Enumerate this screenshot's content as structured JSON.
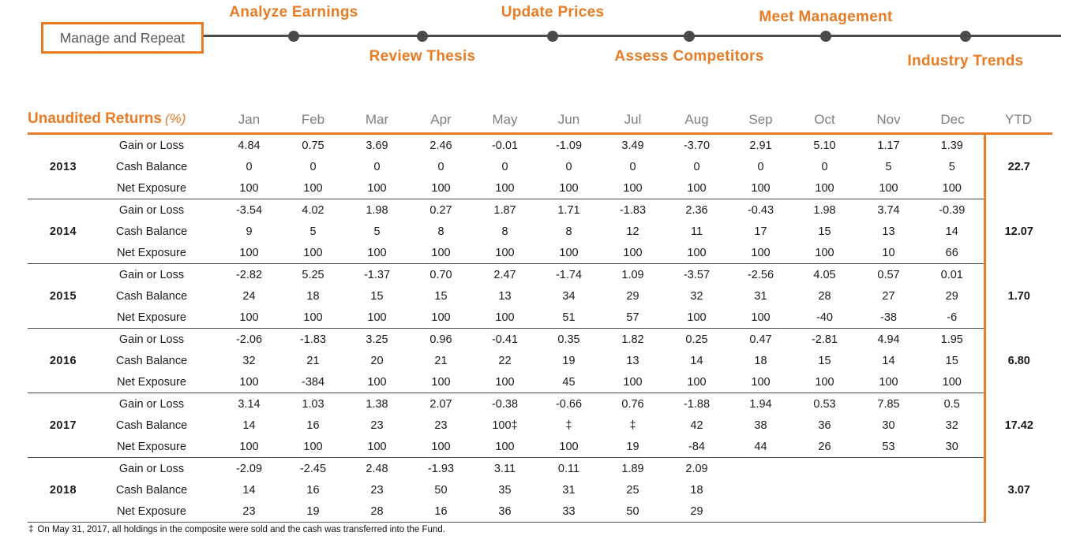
{
  "colors": {
    "accent": "#E87B23",
    "navy": "#1F3864",
    "gray": "#7F7F7F",
    "line": "#4A4A4A"
  },
  "timeline": {
    "box_label": "Manage and Repeat",
    "steps": [
      {
        "label": "Analyze Earnings",
        "position": "above"
      },
      {
        "label": "Review Thesis",
        "position": "below"
      },
      {
        "label": "Update Prices",
        "position": "above"
      },
      {
        "label": "Assess Competitors",
        "position": "below"
      },
      {
        "label": "Meet Management",
        "position": "above"
      },
      {
        "label": "Industry Trends",
        "position": "below"
      }
    ]
  },
  "table": {
    "title": "Unaudited Returns",
    "title_suffix": "(%)",
    "months": [
      "Jan",
      "Feb",
      "Mar",
      "Apr",
      "May",
      "Jun",
      "Jul",
      "Aug",
      "Sep",
      "Oct",
      "Nov",
      "Dec"
    ],
    "ytd_label": "YTD",
    "row_labels": [
      "Gain or Loss",
      "Cash Balance",
      "Net Exposure"
    ],
    "years": [
      {
        "year": "2013",
        "ytd": "22.7",
        "gain_or_loss": [
          "4.84",
          "0.75",
          "3.69",
          "2.46",
          "-0.01",
          "-1.09",
          "3.49",
          "-3.70",
          "2.91",
          "5.10",
          "1.17",
          "1.39"
        ],
        "cash_balance": [
          "0",
          "0",
          "0",
          "0",
          "0",
          "0",
          "0",
          "0",
          "0",
          "0",
          "5",
          "5"
        ],
        "net_exposure": [
          "100",
          "100",
          "100",
          "100",
          "100",
          "100",
          "100",
          "100",
          "100",
          "100",
          "100",
          "100"
        ]
      },
      {
        "year": "2014",
        "ytd": "12.07",
        "gain_or_loss": [
          "-3.54",
          "4.02",
          "1.98",
          "0.27",
          "1.87",
          "1.71",
          "-1.83",
          "2.36",
          "-0.43",
          "1.98",
          "3.74",
          "-0.39"
        ],
        "cash_balance": [
          "9",
          "5",
          "5",
          "8",
          "8",
          "8",
          "12",
          "11",
          "17",
          "15",
          "13",
          "14"
        ],
        "net_exposure": [
          "100",
          "100",
          "100",
          "100",
          "100",
          "100",
          "100",
          "100",
          "100",
          "100",
          "10",
          "66"
        ]
      },
      {
        "year": "2015",
        "ytd": "1.70",
        "gain_or_loss": [
          "-2.82",
          "5.25",
          "-1.37",
          "0.70",
          "2.47",
          "-1.74",
          "1.09",
          "-3.57",
          "-2.56",
          "4.05",
          "0.57",
          "0.01"
        ],
        "cash_balance": [
          "24",
          "18",
          "15",
          "15",
          "13",
          "34",
          "29",
          "32",
          "31",
          "28",
          "27",
          "29"
        ],
        "net_exposure": [
          "100",
          "100",
          "100",
          "100",
          "100",
          "51",
          "57",
          "100",
          "100",
          "-40",
          "-38",
          "-6"
        ]
      },
      {
        "year": "2016",
        "ytd": "6.80",
        "gain_or_loss": [
          "-2.06",
          "-1.83",
          "3.25",
          "0.96",
          "-0.41",
          "0.35",
          "1.82",
          "0.25",
          "0.47",
          "-2.81",
          "4.94",
          "1.95"
        ],
        "cash_balance": [
          "32",
          "21",
          "20",
          "21",
          "22",
          "19",
          "13",
          "14",
          "18",
          "15",
          "14",
          "15"
        ],
        "net_exposure": [
          "100",
          "-384",
          "100",
          "100",
          "100",
          "45",
          "100",
          "100",
          "100",
          "100",
          "100",
          "100"
        ]
      },
      {
        "year": "2017",
        "ytd": "17.42",
        "gain_or_loss": [
          "3.14",
          "1.03",
          "1.38",
          "2.07",
          "-0.38",
          "-0.66",
          "0.76",
          "-1.88",
          "1.94",
          "0.53",
          "7.85",
          "0.5"
        ],
        "cash_balance": [
          "14",
          "16",
          "23",
          "23",
          "100‡",
          "‡",
          "‡",
          "42",
          "38",
          "36",
          "30",
          "32"
        ],
        "net_exposure": [
          "100",
          "100",
          "100",
          "100",
          "100",
          "100",
          "19",
          "-84",
          "44",
          "26",
          "53",
          "30"
        ]
      },
      {
        "year": "2018",
        "ytd": "3.07",
        "gain_or_loss": [
          "-2.09",
          "-2.45",
          "2.48",
          "-1.93",
          "3.11",
          "0.11",
          "1.89",
          "2.09",
          "",
          "",
          "",
          ""
        ],
        "cash_balance": [
          "14",
          "16",
          "23",
          "50",
          "35",
          "31",
          "25",
          "18",
          "",
          "",
          "",
          ""
        ],
        "net_exposure": [
          "23",
          "19",
          "28",
          "16",
          "36",
          "33",
          "50",
          "29",
          "",
          "",
          "",
          ""
        ]
      }
    ]
  },
  "footnote": {
    "marker": "‡",
    "text": "On May 31, 2017, all holdings in the composite were sold and the cash was transferred into the Fund."
  }
}
